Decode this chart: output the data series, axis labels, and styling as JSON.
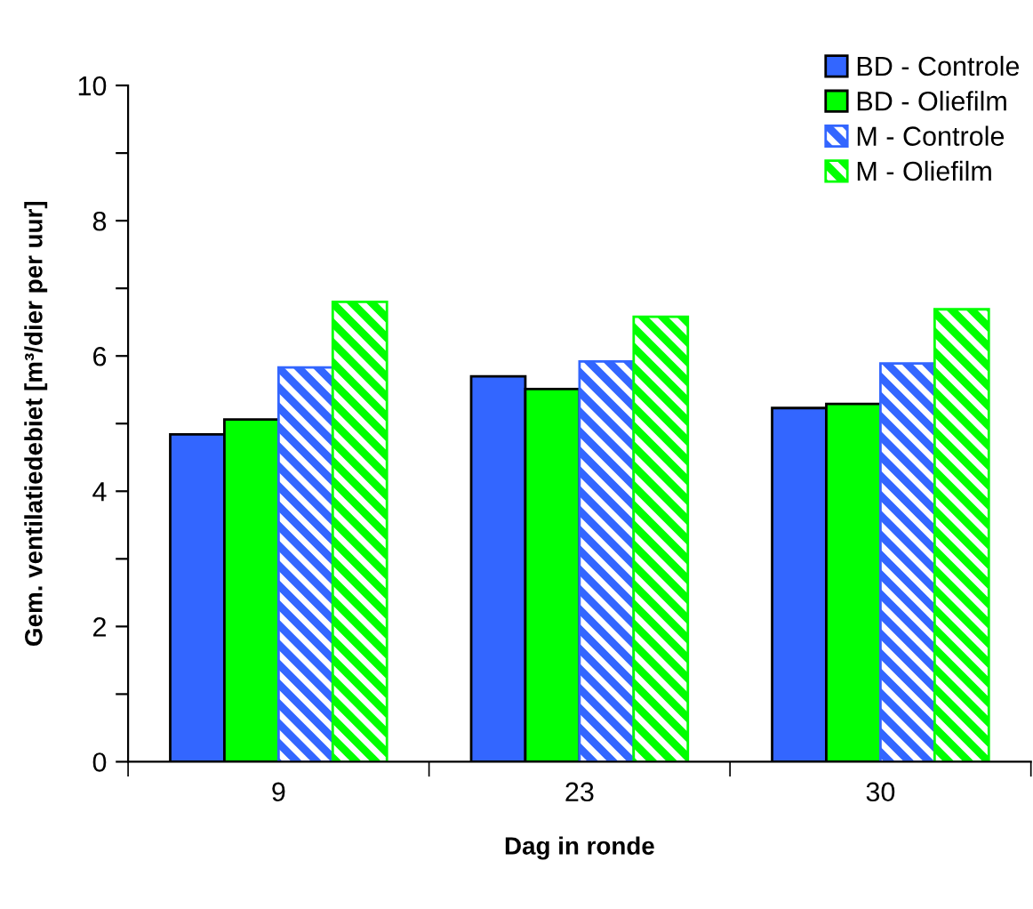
{
  "chart_data": {
    "type": "bar",
    "xlabel": "Dag in ronde",
    "ylabel": "Gem. ventilatiedebiet [m³/dier per uur]",
    "categories": [
      "9",
      "23",
      "30"
    ],
    "series": [
      {
        "name": "BD - Controle",
        "color": "#3366ff",
        "values": [
          4.84,
          5.7,
          5.23
        ]
      },
      {
        "name": "BD - Oliefilm",
        "color": "#00ff00",
        "values": [
          5.06,
          5.51,
          5.29
        ]
      },
      {
        "name": "M - Controle",
        "color": "#3366ff",
        "values": [
          5.83,
          5.92,
          5.89
        ]
      },
      {
        "name": "M - Oliefilm",
        "color": "#00ff00",
        "values": [
          6.8,
          6.58,
          6.69
        ]
      }
    ],
    "ylim": [
      0,
      10
    ],
    "yticks": [
      0,
      {
        "value": 1,
        "label": null
      },
      2,
      {
        "value": 3,
        "label": null
      },
      4,
      {
        "value": 5,
        "label": null
      },
      6,
      {
        "value": 7,
        "label": null
      },
      8,
      {
        "value": 9,
        "label": null
      },
      10
    ],
    "grid": false,
    "legend": "top right"
  }
}
